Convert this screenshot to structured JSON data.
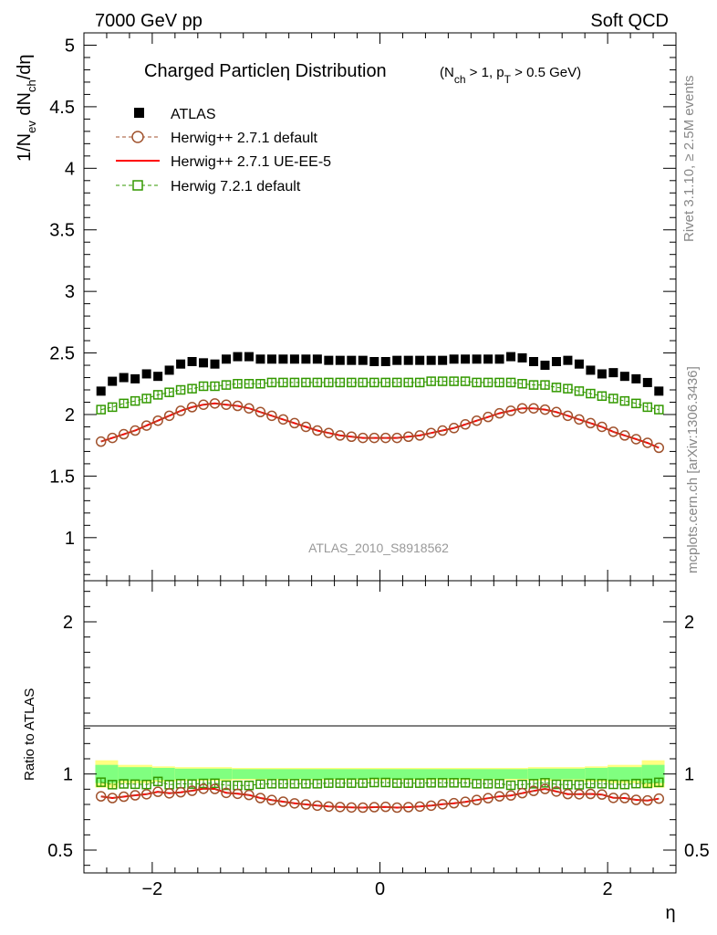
{
  "header": {
    "energy_label": "7000 GeV pp",
    "category_label": "Soft QCD"
  },
  "side_labels": {
    "rivet": "Rivet 3.1.10, ≥ 2.5M events",
    "mcplots": "mcplots.cern.ch [arXiv:1306.3436]"
  },
  "analysis_id": "ATLAS_2010_S8918562",
  "chart_data": [
    {
      "type": "line",
      "panel": "main",
      "title": "Charged Particleη Distribution",
      "title_cuts": {
        "open": "(N",
        "nch_sub": "ch",
        "mid": " > 1, p",
        "pt_sub": "T",
        "close": " > 0.5 GeV)"
      },
      "ylabel": {
        "p1": "1/N",
        "s1": "ev",
        "p2": " dN",
        "s2": "ch",
        "p3": "/dη"
      },
      "xlim": [
        -2.6,
        2.6
      ],
      "ylim": [
        0.65,
        5.1
      ],
      "yticks": [
        1,
        1.5,
        2,
        2.5,
        3,
        3.5,
        4,
        4.5,
        5
      ],
      "ytick_labels": [
        "1",
        "1.5",
        "2",
        "2.5",
        "3",
        "3.5",
        "4",
        "4.5",
        "5"
      ],
      "x": [
        -2.45,
        -2.35,
        -2.25,
        -2.15,
        -2.05,
        -1.95,
        -1.85,
        -1.75,
        -1.65,
        -1.55,
        -1.45,
        -1.35,
        -1.25,
        -1.15,
        -1.05,
        -0.95,
        -0.85,
        -0.75,
        -0.65,
        -0.55,
        -0.45,
        -0.35,
        -0.25,
        -0.15,
        -0.05,
        0.05,
        0.15,
        0.25,
        0.35,
        0.45,
        0.55,
        0.65,
        0.75,
        0.85,
        0.95,
        1.05,
        1.15,
        1.25,
        1.35,
        1.45,
        1.55,
        1.65,
        1.75,
        1.85,
        1.95,
        2.05,
        2.15,
        2.25,
        2.35,
        2.45
      ],
      "series": [
        {
          "name": "ATLAS",
          "style": "data",
          "color": "#000000",
          "values": [
            2.19,
            2.27,
            2.3,
            2.29,
            2.33,
            2.31,
            2.36,
            2.41,
            2.43,
            2.42,
            2.41,
            2.45,
            2.47,
            2.47,
            2.45,
            2.45,
            2.45,
            2.45,
            2.45,
            2.45,
            2.44,
            2.44,
            2.44,
            2.44,
            2.43,
            2.43,
            2.44,
            2.44,
            2.44,
            2.44,
            2.44,
            2.45,
            2.45,
            2.45,
            2.45,
            2.45,
            2.47,
            2.46,
            2.43,
            2.4,
            2.43,
            2.44,
            2.41,
            2.36,
            2.33,
            2.34,
            2.31,
            2.29,
            2.26,
            2.19
          ]
        },
        {
          "name": "Herwig++ 2.7.1 default",
          "style": "circle",
          "color": "#a0522d",
          "values": [
            1.78,
            1.81,
            1.84,
            1.87,
            1.91,
            1.95,
            1.99,
            2.03,
            2.06,
            2.08,
            2.09,
            2.08,
            2.07,
            2.05,
            2.02,
            1.99,
            1.96,
            1.93,
            1.9,
            1.87,
            1.85,
            1.83,
            1.82,
            1.81,
            1.81,
            1.81,
            1.81,
            1.82,
            1.83,
            1.85,
            1.87,
            1.89,
            1.92,
            1.95,
            1.98,
            2.01,
            2.03,
            2.05,
            2.05,
            2.04,
            2.02,
            1.99,
            1.96,
            1.93,
            1.9,
            1.86,
            1.83,
            1.8,
            1.77,
            1.73
          ]
        },
        {
          "name": "Herwig++ 2.7.1 UE-EE-5",
          "style": "line",
          "color": "#ff0000",
          "values": [
            1.78,
            1.81,
            1.84,
            1.87,
            1.91,
            1.95,
            1.99,
            2.03,
            2.06,
            2.08,
            2.09,
            2.08,
            2.07,
            2.05,
            2.02,
            1.99,
            1.96,
            1.93,
            1.9,
            1.87,
            1.85,
            1.83,
            1.82,
            1.81,
            1.81,
            1.81,
            1.81,
            1.82,
            1.83,
            1.85,
            1.87,
            1.89,
            1.92,
            1.95,
            1.98,
            2.01,
            2.03,
            2.05,
            2.05,
            2.04,
            2.02,
            1.99,
            1.96,
            1.93,
            1.9,
            1.86,
            1.83,
            1.8,
            1.77,
            1.73
          ]
        },
        {
          "name": "Herwig 7.2.1 default",
          "style": "square",
          "color": "#339900",
          "values": [
            2.04,
            2.06,
            2.09,
            2.11,
            2.13,
            2.16,
            2.18,
            2.2,
            2.21,
            2.23,
            2.23,
            2.24,
            2.25,
            2.25,
            2.25,
            2.26,
            2.26,
            2.26,
            2.26,
            2.26,
            2.26,
            2.26,
            2.26,
            2.26,
            2.26,
            2.26,
            2.26,
            2.26,
            2.26,
            2.27,
            2.27,
            2.27,
            2.27,
            2.26,
            2.26,
            2.26,
            2.26,
            2.25,
            2.24,
            2.24,
            2.22,
            2.21,
            2.19,
            2.17,
            2.15,
            2.13,
            2.11,
            2.09,
            2.06,
            2.04
          ]
        }
      ]
    },
    {
      "type": "line",
      "panel": "ratio",
      "ylabel": "Ratio to ATLAS",
      "xlabel": "η",
      "xlim": [
        -2.6,
        2.6
      ],
      "ylim": [
        0.35,
        2.27
      ],
      "xticks": [
        -2,
        0,
        2
      ],
      "xtick_labels": [
        "−2",
        "0",
        "2"
      ],
      "yticks": [
        0.5,
        1,
        2
      ],
      "ytick_labels": [
        "0.5",
        "1",
        "2"
      ],
      "uncertainty_bands": {
        "outer_color": "#ffff80",
        "inner_color": "#80ff80",
        "bin_edges": [
          -2.5,
          -2.3,
          -2.0,
          -1.8,
          -1.3,
          1.3,
          1.8,
          2.0,
          2.3,
          2.5
        ],
        "outer_halfwidth": [
          0.09,
          0.06,
          0.05,
          0.045,
          0.04,
          0.045,
          0.05,
          0.06,
          0.09
        ],
        "inner_halfwidth": [
          0.06,
          0.045,
          0.04,
          0.035,
          0.032,
          0.035,
          0.04,
          0.045,
          0.06
        ]
      },
      "series": [
        {
          "name": "Herwig++ 2.7.1 default",
          "style": "circle",
          "color": "#a0522d",
          "values": [
            0.853,
            0.842,
            0.851,
            0.86,
            0.867,
            0.883,
            0.873,
            0.88,
            0.89,
            0.903,
            0.902,
            0.876,
            0.87,
            0.862,
            0.842,
            0.829,
            0.818,
            0.807,
            0.8,
            0.792,
            0.786,
            0.783,
            0.78,
            0.779,
            0.782,
            0.784,
            0.779,
            0.782,
            0.786,
            0.792,
            0.801,
            0.808,
            0.817,
            0.829,
            0.841,
            0.853,
            0.859,
            0.874,
            0.889,
            0.902,
            0.885,
            0.868,
            0.867,
            0.869,
            0.865,
            0.843,
            0.842,
            0.83,
            0.826,
            0.838
          ]
        },
        {
          "name": "Herwig++ 2.7.1 UE-EE-5",
          "style": "line",
          "color": "#ff0000",
          "values": [
            0.853,
            0.842,
            0.851,
            0.86,
            0.867,
            0.883,
            0.873,
            0.88,
            0.89,
            0.903,
            0.902,
            0.876,
            0.87,
            0.862,
            0.842,
            0.829,
            0.818,
            0.807,
            0.8,
            0.792,
            0.786,
            0.783,
            0.78,
            0.779,
            0.782,
            0.784,
            0.779,
            0.782,
            0.786,
            0.792,
            0.801,
            0.808,
            0.817,
            0.829,
            0.841,
            0.853,
            0.859,
            0.874,
            0.889,
            0.902,
            0.885,
            0.868,
            0.867,
            0.869,
            0.865,
            0.843,
            0.842,
            0.83,
            0.826,
            0.838
          ]
        },
        {
          "name": "Herwig 7.2.1 default",
          "style": "square",
          "color": "#339900",
          "values": [
            0.946,
            0.93,
            0.935,
            0.933,
            0.931,
            0.951,
            0.93,
            0.936,
            0.934,
            0.938,
            0.939,
            0.926,
            0.925,
            0.925,
            0.933,
            0.936,
            0.936,
            0.936,
            0.936,
            0.936,
            0.94,
            0.94,
            0.94,
            0.94,
            0.944,
            0.944,
            0.94,
            0.94,
            0.94,
            0.942,
            0.942,
            0.942,
            0.942,
            0.936,
            0.936,
            0.936,
            0.926,
            0.931,
            0.936,
            0.942,
            0.932,
            0.93,
            0.929,
            0.937,
            0.936,
            0.932,
            0.931,
            0.937,
            0.938,
            0.945
          ]
        }
      ]
    }
  ]
}
